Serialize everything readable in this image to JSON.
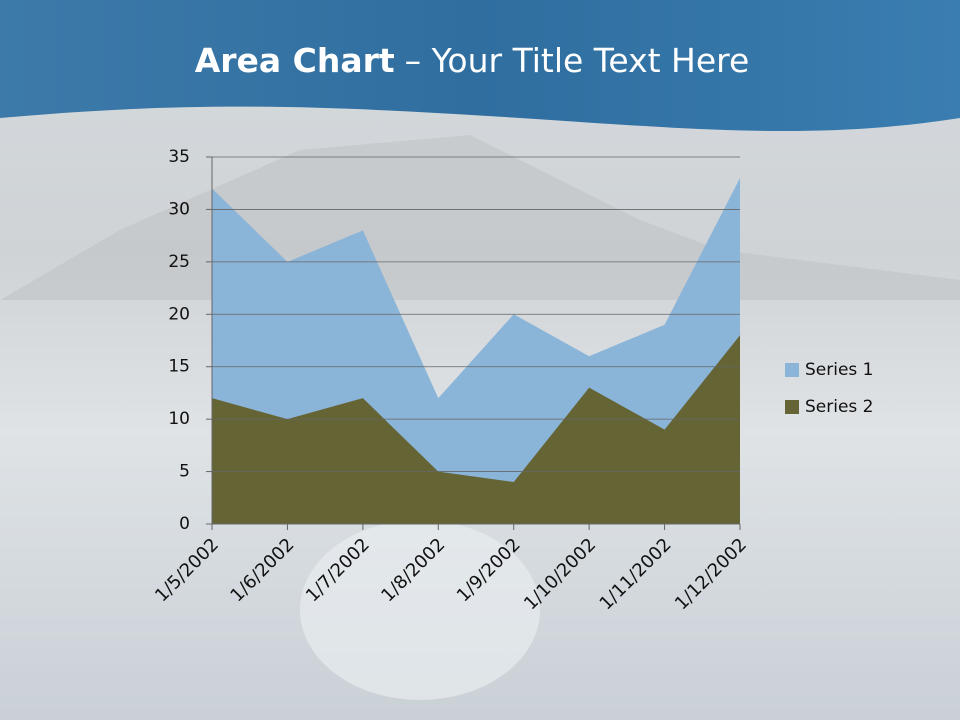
{
  "chart_data": {
    "type": "area",
    "title_parts": [
      "Area Chart",
      "– Your Title Text Here"
    ],
    "categories": [
      "1/5/2002",
      "1/6/2002",
      "1/7/2002",
      "1/8/2002",
      "1/9/2002",
      "1/10/2002",
      "1/11/2002",
      "1/12/2002"
    ],
    "series": [
      {
        "name": "Series 1",
        "color": "#8ab4d8",
        "values": [
          32,
          25,
          28,
          12,
          20,
          16,
          19,
          33
        ]
      },
      {
        "name": "Series 2",
        "color": "#656434",
        "values": [
          12,
          10,
          12,
          5,
          4,
          13,
          9,
          18
        ]
      }
    ],
    "ylim": [
      0,
      35
    ],
    "yticks": [
      0,
      5,
      10,
      15,
      20,
      25,
      30,
      35
    ],
    "grid": true,
    "legend": "right"
  }
}
